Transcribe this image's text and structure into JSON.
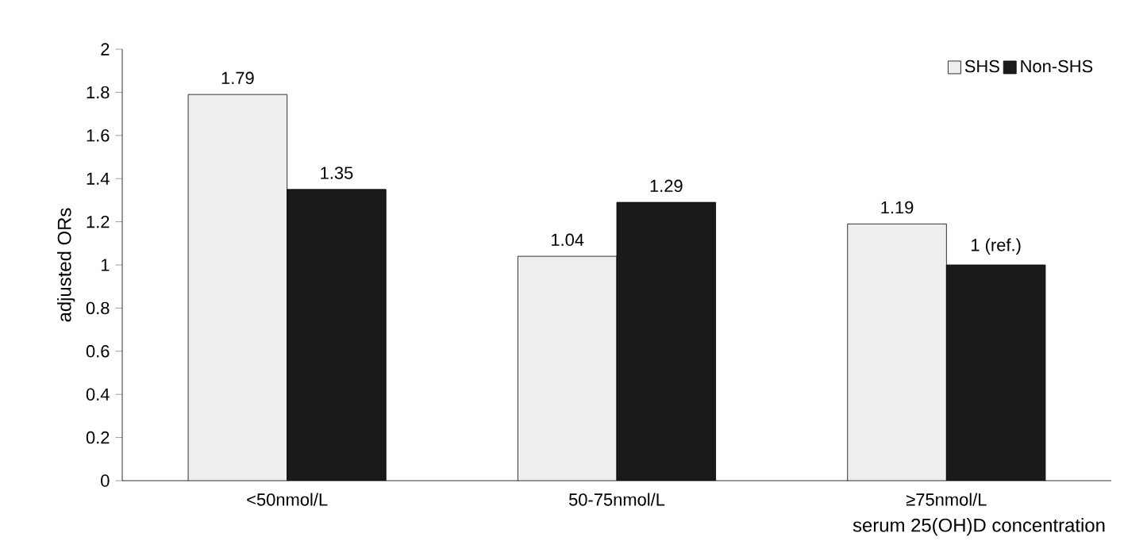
{
  "chart_data": {
    "type": "bar",
    "xlabel": "serum 25(OH)D concentration",
    "ylabel": "adjusted ORs",
    "categories": [
      "<50nmol/L",
      "50-75nmol/L",
      "≥75nmol/L"
    ],
    "series": [
      {
        "name": "SHS",
        "color": "#eeeeee",
        "values": [
          1.79,
          1.04,
          1.19
        ],
        "value_labels": [
          "1.79",
          "1.04",
          "1.19"
        ]
      },
      {
        "name": "Non-SHS",
        "color": "#1a1a1a",
        "values": [
          1.35,
          1.29,
          1
        ],
        "value_labels": [
          "1.35",
          "1.29",
          "1 (ref.)"
        ]
      }
    ],
    "ylim": [
      0,
      2
    ],
    "yticks": [
      0,
      0.2,
      0.4,
      0.6,
      0.8,
      1,
      1.2,
      1.4,
      1.6,
      1.8,
      2
    ],
    "grid": false,
    "legend": "top right"
  }
}
